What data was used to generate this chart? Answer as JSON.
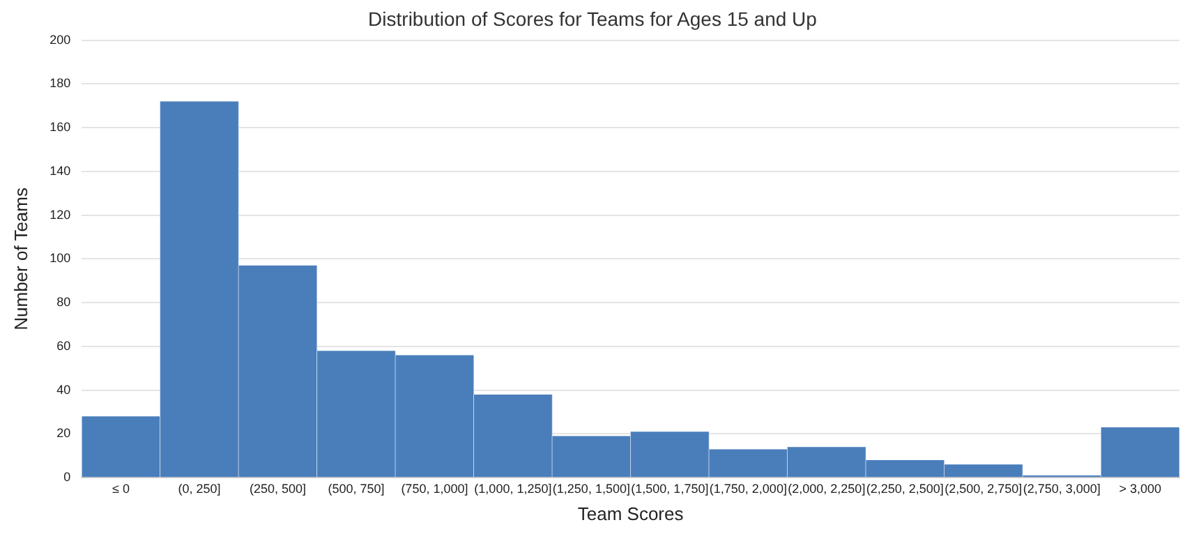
{
  "chart_data": {
    "type": "bar",
    "title": "Distribution of Scores for Teams for Ages 15 and Up",
    "xlabel": "Team Scores",
    "ylabel": "Number of Teams",
    "categories": [
      "≤ 0",
      "(0, 250]",
      "(250, 500]",
      "(500, 750]",
      "(750, 1,000]",
      "(1,000, 1,250]",
      "(1,250, 1,500]",
      "(1,500, 1,750]",
      "(1,750, 2,000]",
      "(2,000, 2,250]",
      "(2,250, 2,500]",
      "(2,500, 2,750]",
      "(2,750, 3,000]",
      "> 3,000"
    ],
    "values": [
      28,
      172,
      97,
      58,
      56,
      38,
      19,
      21,
      13,
      14,
      8,
      6,
      1,
      23
    ],
    "color": "#4a7ebb",
    "ylim": [
      0,
      200
    ],
    "yticks": [
      0,
      20,
      40,
      60,
      80,
      100,
      120,
      140,
      160,
      180,
      200
    ],
    "grid": "y",
    "legend": false
  }
}
